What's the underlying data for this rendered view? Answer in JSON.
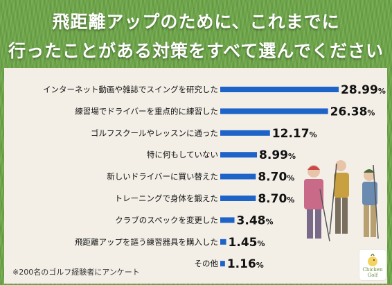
{
  "header": {
    "line1": "飛距離アップのために、これまでに",
    "line2": "行ったことがある対策をすべて選んでください"
  },
  "footnote": "※200名のゴルフ経験者にアンケート",
  "logo": {
    "line1": "Chicken",
    "line2": "Golf"
  },
  "colors": {
    "bar": "#1e64c8",
    "background": "#6fa84a",
    "panel": "#f3efe7"
  },
  "chart_data": {
    "type": "bar",
    "orientation": "horizontal",
    "categories": [
      "インターネット動画や雑誌でスイングを研究した",
      "練習場でドライバーを重点的に練習した",
      "ゴルフスクールやレッスンに通った",
      "特に何もしていない",
      "新しいドライバーに買い替えた",
      "トレーニングで身体を鍛えた",
      "クラブのスペックを変更した",
      "飛距離アップを謳う練習器具を購入した",
      "その他"
    ],
    "values": [
      28.99,
      26.38,
      12.17,
      8.99,
      8.7,
      8.7,
      3.48,
      1.45,
      1.16
    ],
    "labels": [
      "28.99",
      "26.38",
      "12.17",
      "8.99",
      "8.70",
      "8.70",
      "3.48",
      "1.45",
      "1.16"
    ],
    "unit": "%",
    "xlim": [
      0,
      30
    ]
  }
}
